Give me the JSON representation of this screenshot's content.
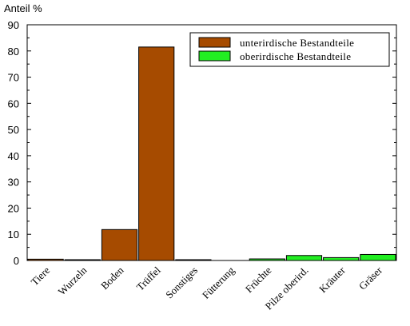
{
  "chart_data": {
    "type": "bar",
    "ylabel": "Anteil %",
    "xlabel": "",
    "ylim": [
      0,
      90
    ],
    "yticks": [
      0,
      10,
      20,
      30,
      40,
      50,
      60,
      70,
      80,
      90
    ],
    "categories": [
      "Tiere",
      "Wurzeln",
      "Boden",
      "Trüffel",
      "Sonstiges",
      "Fütterung",
      "Früchte",
      "Pilze oberird.",
      "Kräuter",
      "Gräser"
    ],
    "series": [
      {
        "name": "unterirdische Bestandteile",
        "color": "#A64B00",
        "values": [
          0.5,
          0.3,
          11.8,
          81.5,
          0.3,
          null,
          null,
          null,
          null,
          null
        ]
      },
      {
        "name": "oberirdische Bestandteile",
        "color": "#22EE22",
        "values": [
          null,
          null,
          null,
          null,
          null,
          null,
          0.6,
          1.9,
          1.1,
          2.3
        ]
      }
    ],
    "legend_position": "top-right",
    "grid": false
  }
}
